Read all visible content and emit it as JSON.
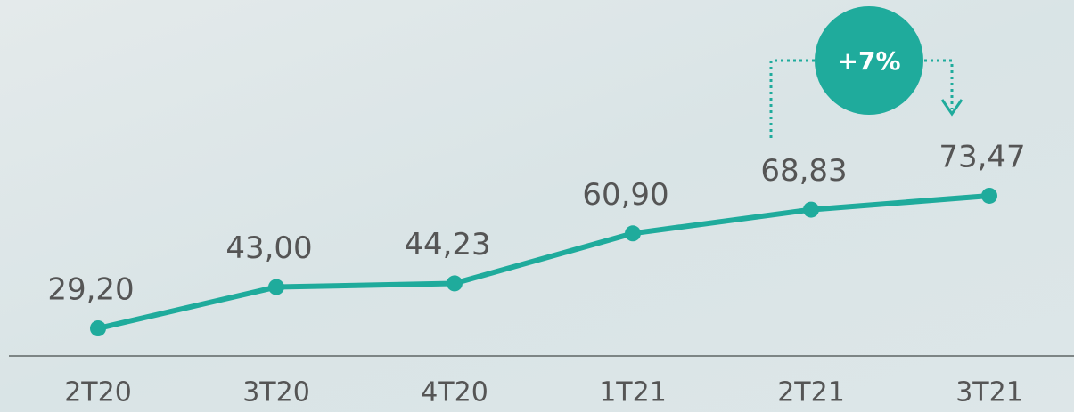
{
  "chart_data": {
    "type": "line",
    "categories": [
      "2T20",
      "3T20",
      "4T20",
      "1T21",
      "2T21",
      "3T21"
    ],
    "series": [
      {
        "color": "#1fab9c",
        "values": [
          29.2,
          43.0,
          44.23,
          60.9,
          68.83,
          73.47
        ],
        "value_labels": [
          "29,20",
          "43,00",
          "44,23",
          "60,90",
          "68,83",
          "73,47"
        ]
      }
    ],
    "ylim": [
      20,
      138.8
    ],
    "annotations": [
      "+7%"
    ]
  }
}
